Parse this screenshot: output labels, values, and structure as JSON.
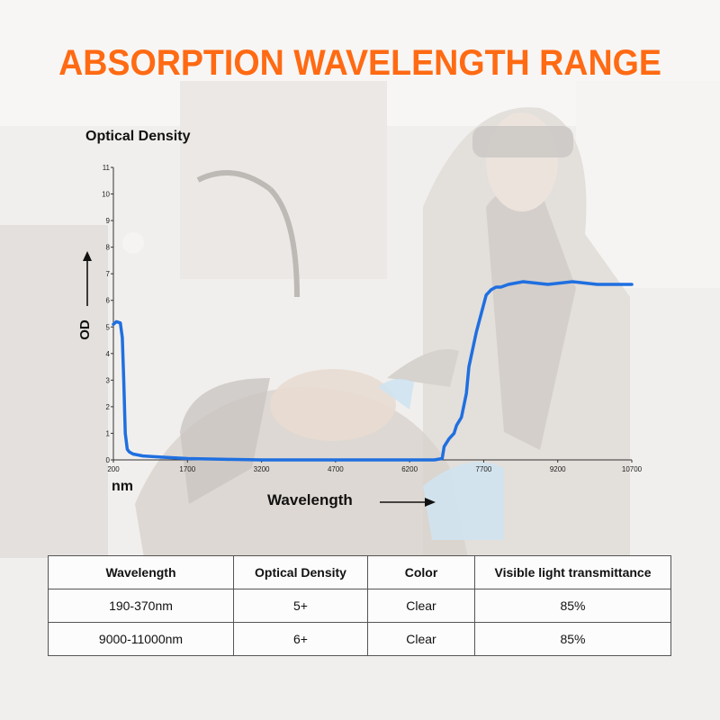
{
  "title": "ABSORPTION WAVELENGTH RANGE",
  "colors": {
    "title": "#ff6a13",
    "line": "#1f6fe0",
    "axis": "#333333"
  },
  "labels": {
    "optical_density": "Optical Density",
    "od": "OD",
    "nm": "nm",
    "wavelength": "Wavelength"
  },
  "chart_data": {
    "type": "line",
    "title": "",
    "xlabel": "Wavelength",
    "ylabel": "OD",
    "xunit": "nm",
    "xlim": [
      200,
      10700
    ],
    "ylim": [
      0,
      11
    ],
    "xticks": [
      200,
      1700,
      3200,
      4700,
      6200,
      7700,
      9200,
      10700
    ],
    "yticks": [
      0,
      1,
      2,
      3,
      4,
      5,
      6,
      7,
      8,
      9,
      10,
      11
    ],
    "grid": false,
    "series": [
      {
        "x": [
          200,
          260,
          340,
          380,
          410,
          440,
          480,
          520,
          600,
          800,
          1200,
          1700,
          2500,
          3200,
          4000,
          4700,
          5500,
          6200,
          6700,
          6860,
          6900,
          7000,
          7100,
          7150,
          7250,
          7350,
          7400,
          7550,
          7650,
          7750,
          7850,
          7950,
          8050,
          8200,
          8500,
          9000,
          9500,
          10000,
          10500,
          10700
        ],
        "y": [
          5.1,
          5.2,
          5.15,
          4.6,
          3.0,
          1.0,
          0.4,
          0.3,
          0.22,
          0.15,
          0.1,
          0.05,
          0.02,
          0.0,
          0.0,
          0.0,
          0.0,
          0.0,
          0.0,
          0.05,
          0.5,
          0.8,
          1.0,
          1.3,
          1.6,
          2.5,
          3.5,
          4.8,
          5.5,
          6.2,
          6.4,
          6.5,
          6.5,
          6.6,
          6.7,
          6.6,
          6.7,
          6.6,
          6.6,
          6.6
        ]
      }
    ]
  },
  "table": {
    "headers": [
      "Wavelength",
      "Optical Density",
      "Color",
      "Visible light transmittance"
    ],
    "rows": [
      [
        "190-370nm",
        "5+",
        "Clear",
        "85%"
      ],
      [
        "9000-11000nm",
        "6+",
        "Clear",
        "85%"
      ]
    ]
  }
}
